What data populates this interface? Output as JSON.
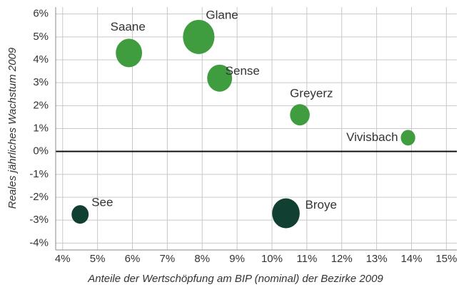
{
  "chart_data": {
    "type": "bubble",
    "x_label": "Anteile der Wertschöpfung am BIP (nominal) der Bezirke 2009",
    "y_label": "Reales jährliches Wachstum 2009",
    "points": [
      "Saane",
      "Glane",
      "Sense",
      "Greyerz",
      "Vivisbach",
      "See",
      "Broye"
    ],
    "x": [
      5.9,
      7.9,
      8.5,
      10.8,
      13.9,
      4.5,
      10.4
    ],
    "values": [
      4.3,
      5.0,
      3.2,
      1.6,
      0.6,
      -2.75,
      -2.7
    ],
    "sizes": [
      20,
      24,
      19,
      15,
      11,
      13,
      21
    ],
    "colors": [
      "#3f9d3f",
      "#3f9d3f",
      "#3f9d3f",
      "#3f9d3f",
      "#3f9d3f",
      "#113f32",
      "#113f32"
    ],
    "xlim": [
      3.8,
      15.3
    ],
    "ylim": [
      -4.3,
      6.3
    ],
    "xticks": [
      {
        "value": 4,
        "label": "4%"
      },
      {
        "value": 5,
        "label": "5%"
      },
      {
        "value": 6,
        "label": "6%"
      },
      {
        "value": 7,
        "label": "7%"
      },
      {
        "value": 8,
        "label": "8%"
      },
      {
        "value": 9,
        "label": "9%"
      },
      {
        "value": 10,
        "label": "10%"
      },
      {
        "value": 11,
        "label": "11%"
      },
      {
        "value": 12,
        "label": "12%"
      },
      {
        "value": 13,
        "label": "13%"
      },
      {
        "value": 14,
        "label": "14%"
      },
      {
        "value": 15,
        "label": "15%"
      }
    ],
    "yticks": [
      {
        "value": 6,
        "label": "6%"
      },
      {
        "value": 5,
        "label": "5%"
      },
      {
        "value": 4,
        "label": "4%"
      },
      {
        "value": 3,
        "label": "3%"
      },
      {
        "value": 2,
        "label": "2%"
      },
      {
        "value": 1,
        "label": "1%"
      },
      {
        "value": 0,
        "label": "0%"
      },
      {
        "value": -1,
        "label": "-1%"
      },
      {
        "value": -2,
        "label": "-2%"
      },
      {
        "value": -3,
        "label": "-3%"
      },
      {
        "value": -4,
        "label": "-4%"
      }
    ],
    "grid": true
  }
}
